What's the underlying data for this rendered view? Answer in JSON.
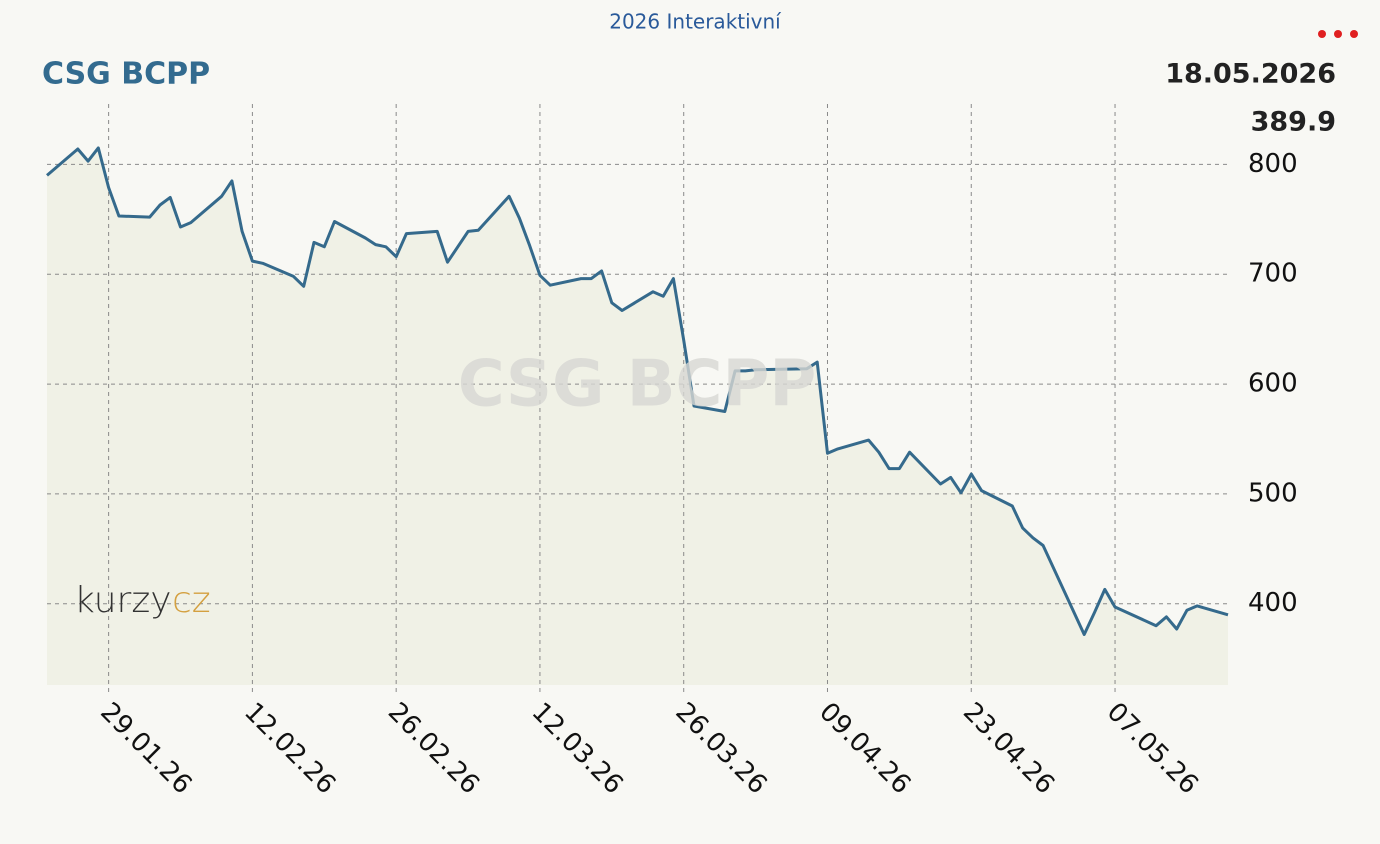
{
  "header": {
    "link": "2026 Interaktivní",
    "date": "18.05.2026"
  },
  "brand": {
    "name": "kurzy",
    "suffix": "cz"
  },
  "chart_data": {
    "type": "line",
    "title": "CSG BCPP",
    "color": "#356a8c",
    "fill": "#f0f1e6",
    "grid": true,
    "x": [
      "23.01.26",
      "26.01.26",
      "27.01.26",
      "28.01.26",
      "29.01.26",
      "30.01.26",
      "02.02.26",
      "03.02.26",
      "04.02.26",
      "05.02.26",
      "06.02.26",
      "09.02.26",
      "10.02.26",
      "11.02.26",
      "12.02.26",
      "13.02.26",
      "16.02.26",
      "17.02.26",
      "18.02.26",
      "19.02.26",
      "20.02.26",
      "23.02.26",
      "24.02.26",
      "25.02.26",
      "26.02.26",
      "27.02.26",
      "02.03.26",
      "03.03.26",
      "04.03.26",
      "05.03.26",
      "06.03.26",
      "09.03.26",
      "10.03.26",
      "11.03.26",
      "12.03.26",
      "13.03.26",
      "16.03.26",
      "17.03.26",
      "18.03.26",
      "19.03.26",
      "20.03.26",
      "23.03.26",
      "24.03.26",
      "25.03.26",
      "26.03.26",
      "27.03.26",
      "30.03.26",
      "31.03.26",
      "01.04.26",
      "02.04.26",
      "07.04.26",
      "08.04.26",
      "09.04.26",
      "10.04.26",
      "13.04.26",
      "14.04.26",
      "15.04.26",
      "16.04.26",
      "17.04.26",
      "20.04.26",
      "21.04.26",
      "22.04.26",
      "23.04.26",
      "24.04.26",
      "27.04.26",
      "28.04.26",
      "29.04.26",
      "30.04.26",
      "04.05.26",
      "05.05.26",
      "06.05.26",
      "07.05.26",
      "11.05.26",
      "12.05.26",
      "13.05.26",
      "14.05.26",
      "15.05.26",
      "18.05.26"
    ],
    "values": [
      790,
      814,
      803,
      815,
      779,
      753,
      752,
      763,
      770,
      743,
      747,
      771,
      785,
      739,
      712,
      710,
      698,
      689,
      729,
      725,
      748,
      733,
      727,
      725,
      716,
      737,
      739,
      711,
      725,
      739,
      740,
      771,
      751,
      726,
      699,
      690,
      696,
      696,
      703,
      674,
      667,
      684,
      680,
      696,
      640,
      580,
      575,
      612,
      612,
      613,
      614,
      620,
      537,
      541,
      549,
      538,
      523,
      523,
      538,
      509,
      515,
      501,
      518,
      503,
      489,
      469,
      460,
      453,
      372,
      392,
      413,
      397,
      380,
      388,
      377,
      394,
      398,
      389.9
    ],
    "xlim": [
      "23.01.26",
      "18.05.26"
    ],
    "xticks": [
      "29.01.26",
      "12.02.26",
      "26.02.26",
      "12.03.26",
      "26.03.26",
      "09.04.26",
      "23.04.26",
      "07.05.26"
    ],
    "ylim": [
      326,
      855
    ],
    "yticks": [
      400,
      500,
      600,
      700,
      800
    ]
  }
}
